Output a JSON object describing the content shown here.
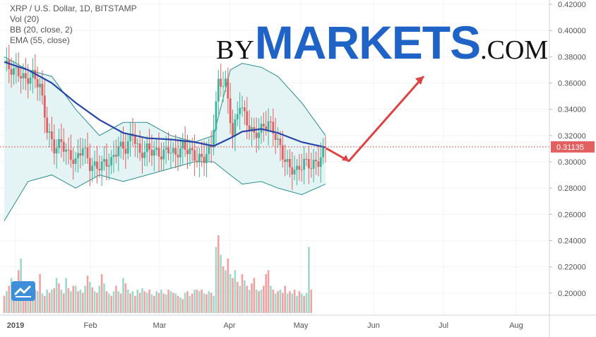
{
  "legend": {
    "title": "XRP / U.S. Dollar, 1D, BITSTAMP",
    "vol": "Vol (20)",
    "bb": "BB (20, close, 2)",
    "ema": "EMA (55, close)"
  },
  "watermark": {
    "by": "BY",
    "markets": "MARKETS",
    "com": ".COM"
  },
  "chart_data": {
    "type": "candlestick",
    "symbol": "XRP / U.S. Dollar",
    "interval": "1D",
    "exchange": "BITSTAMP",
    "y_range": [
      0.18,
      0.42
    ],
    "y_ticks": [
      "0.42000",
      "0.40000",
      "0.38000",
      "0.36000",
      "0.34000",
      "0.32000",
      "0.30000",
      "0.28000",
      "0.26000",
      "0.24000",
      "0.22000",
      "0.20000"
    ],
    "x_ticks": [
      "2019",
      "Feb",
      "Mar",
      "Apr",
      "May",
      "Jun",
      "Jul",
      "Aug"
    ],
    "current_price": "0.31135",
    "colors": {
      "up": "#3db59c",
      "down": "#e36060",
      "vol_up": "#9fd9cb",
      "vol_down": "#f2a2a2",
      "ema": "#2845a8",
      "bb": "#2a8f8f",
      "bb_fill": "#e4f3f4",
      "price_line": "#e36060",
      "arrow": "#de4343"
    },
    "price_path": [
      [
        0,
        0.375
      ],
      [
        3,
        0.37
      ],
      [
        6,
        0.368
      ],
      [
        9,
        0.362
      ],
      [
        12,
        0.366
      ],
      [
        15,
        0.358
      ],
      [
        18,
        0.325
      ],
      [
        21,
        0.31
      ],
      [
        24,
        0.315
      ],
      [
        27,
        0.305
      ],
      [
        30,
        0.3
      ],
      [
        33,
        0.312
      ],
      [
        36,
        0.297
      ],
      [
        39,
        0.296
      ],
      [
        42,
        0.299
      ],
      [
        45,
        0.3
      ],
      [
        48,
        0.312
      ],
      [
        51,
        0.31
      ],
      [
        54,
        0.322
      ],
      [
        57,
        0.305
      ],
      [
        60,
        0.31
      ],
      [
        63,
        0.308
      ],
      [
        66,
        0.305
      ],
      [
        69,
        0.31
      ],
      [
        72,
        0.305
      ],
      [
        75,
        0.312
      ],
      [
        78,
        0.308
      ],
      [
        81,
        0.302
      ],
      [
        84,
        0.303
      ],
      [
        87,
        0.312
      ],
      [
        90,
        0.36
      ],
      [
        93,
        0.36
      ],
      [
        96,
        0.32
      ],
      [
        99,
        0.345
      ],
      [
        102,
        0.33
      ],
      [
        105,
        0.32
      ],
      [
        108,
        0.325
      ],
      [
        111,
        0.33
      ],
      [
        114,
        0.32
      ],
      [
        117,
        0.305
      ],
      [
        120,
        0.295
      ],
      [
        123,
        0.293
      ],
      [
        126,
        0.3
      ],
      [
        129,
        0.297
      ],
      [
        132,
        0.3
      ],
      [
        135,
        0.31135
      ]
    ],
    "ema_path": [
      [
        0,
        0.376
      ],
      [
        10,
        0.37
      ],
      [
        20,
        0.36
      ],
      [
        30,
        0.345
      ],
      [
        40,
        0.332
      ],
      [
        50,
        0.322
      ],
      [
        60,
        0.318
      ],
      [
        70,
        0.317
      ],
      [
        80,
        0.315
      ],
      [
        88,
        0.312
      ],
      [
        95,
        0.318
      ],
      [
        100,
        0.323
      ],
      [
        108,
        0.325
      ],
      [
        115,
        0.322
      ],
      [
        125,
        0.315
      ],
      [
        135,
        0.311
      ]
    ],
    "bb_upper": [
      [
        0,
        0.38
      ],
      [
        10,
        0.37
      ],
      [
        20,
        0.365
      ],
      [
        30,
        0.34
      ],
      [
        40,
        0.32
      ],
      [
        50,
        0.33
      ],
      [
        60,
        0.33
      ],
      [
        70,
        0.32
      ],
      [
        80,
        0.315
      ],
      [
        88,
        0.32
      ],
      [
        95,
        0.37
      ],
      [
        100,
        0.375
      ],
      [
        108,
        0.372
      ],
      [
        115,
        0.365
      ],
      [
        125,
        0.345
      ],
      [
        135,
        0.32
      ]
    ],
    "bb_lower": [
      [
        0,
        0.255
      ],
      [
        10,
        0.285
      ],
      [
        20,
        0.29
      ],
      [
        30,
        0.28
      ],
      [
        40,
        0.29
      ],
      [
        50,
        0.285
      ],
      [
        60,
        0.29
      ],
      [
        70,
        0.295
      ],
      [
        80,
        0.3
      ],
      [
        88,
        0.3
      ],
      [
        95,
        0.29
      ],
      [
        100,
        0.283
      ],
      [
        108,
        0.285
      ],
      [
        115,
        0.28
      ],
      [
        125,
        0.275
      ],
      [
        135,
        0.283
      ]
    ],
    "volume_bars": [
      [
        0.22,
        0
      ],
      [
        0.28,
        1
      ],
      [
        0.35,
        0
      ],
      [
        0.45,
        1
      ],
      [
        0.3,
        0
      ],
      [
        0.25,
        1
      ],
      [
        0.55,
        0
      ],
      [
        0.7,
        1
      ],
      [
        0.4,
        0
      ],
      [
        0.3,
        0
      ],
      [
        0.25,
        1
      ],
      [
        0.2,
        0
      ],
      [
        0.35,
        1
      ],
      [
        0.3,
        0
      ],
      [
        0.28,
        1
      ],
      [
        0.5,
        0
      ],
      [
        0.25,
        1
      ],
      [
        0.22,
        0
      ],
      [
        0.3,
        1
      ],
      [
        0.26,
        0
      ],
      [
        0.3,
        1
      ],
      [
        0.32,
        0
      ],
      [
        0.45,
        1
      ],
      [
        0.38,
        0
      ],
      [
        0.3,
        1
      ],
      [
        0.25,
        0
      ],
      [
        0.45,
        1
      ],
      [
        0.32,
        0
      ],
      [
        0.28,
        1
      ],
      [
        0.35,
        0
      ],
      [
        0.35,
        1
      ],
      [
        0.28,
        0
      ],
      [
        0.3,
        1
      ],
      [
        0.26,
        0
      ],
      [
        0.35,
        1
      ],
      [
        0.48,
        0
      ],
      [
        0.4,
        1
      ],
      [
        0.33,
        0
      ],
      [
        0.28,
        1
      ],
      [
        0.26,
        0
      ],
      [
        0.35,
        1
      ],
      [
        0.5,
        0
      ],
      [
        0.38,
        1
      ],
      [
        0.28,
        0
      ],
      [
        0.25,
        1
      ],
      [
        0.22,
        0
      ],
      [
        0.28,
        1
      ],
      [
        0.35,
        0
      ],
      [
        0.28,
        1
      ],
      [
        0.25,
        0
      ],
      [
        0.45,
        1
      ],
      [
        0.38,
        0
      ],
      [
        0.3,
        1
      ],
      [
        0.25,
        0
      ],
      [
        0.28,
        1
      ],
      [
        0.22,
        0
      ],
      [
        0.3,
        1
      ],
      [
        0.26,
        0
      ],
      [
        0.32,
        1
      ],
      [
        0.28,
        0
      ],
      [
        0.26,
        1
      ],
      [
        0.3,
        0
      ],
      [
        0.24,
        1
      ],
      [
        0.22,
        0
      ],
      [
        0.28,
        1
      ],
      [
        0.26,
        0
      ],
      [
        0.3,
        1
      ],
      [
        0.25,
        0
      ],
      [
        0.24,
        1
      ],
      [
        0.3,
        0
      ],
      [
        0.28,
        1
      ],
      [
        0.26,
        0
      ],
      [
        0.25,
        1
      ],
      [
        0.22,
        0
      ],
      [
        0.2,
        1
      ],
      [
        0.18,
        0
      ],
      [
        0.26,
        1
      ],
      [
        0.28,
        0
      ],
      [
        0.22,
        1
      ],
      [
        0.25,
        0
      ],
      [
        0.3,
        1
      ],
      [
        0.3,
        0
      ],
      [
        0.28,
        1
      ],
      [
        0.3,
        0
      ],
      [
        0.25,
        1
      ],
      [
        0.24,
        0
      ],
      [
        0.28,
        1
      ],
      [
        0.26,
        0
      ],
      [
        0.22,
        1
      ],
      [
        0.85,
        1
      ],
      [
        1.0,
        0
      ],
      [
        0.75,
        1
      ],
      [
        0.6,
        0
      ],
      [
        0.55,
        1
      ],
      [
        0.7,
        0
      ],
      [
        0.5,
        1
      ],
      [
        0.45,
        0
      ],
      [
        0.55,
        1
      ],
      [
        0.4,
        0
      ],
      [
        0.35,
        1
      ],
      [
        0.5,
        0
      ],
      [
        0.42,
        1
      ],
      [
        0.35,
        0
      ],
      [
        0.3,
        1
      ],
      [
        0.38,
        0
      ],
      [
        0.45,
        0
      ],
      [
        0.3,
        1
      ],
      [
        0.28,
        0
      ],
      [
        0.3,
        1
      ],
      [
        0.35,
        0
      ],
      [
        0.5,
        0
      ],
      [
        0.55,
        0
      ],
      [
        0.35,
        1
      ],
      [
        0.3,
        0
      ],
      [
        0.25,
        1
      ],
      [
        0.28,
        0
      ],
      [
        0.3,
        1
      ],
      [
        0.26,
        0
      ],
      [
        0.35,
        0
      ],
      [
        0.25,
        1
      ],
      [
        0.28,
        0
      ],
      [
        0.25,
        1
      ],
      [
        0.3,
        0
      ],
      [
        0.22,
        1
      ],
      [
        0.28,
        0
      ],
      [
        0.25,
        1
      ],
      [
        0.22,
        0
      ],
      [
        0.26,
        1
      ],
      [
        0.85,
        1
      ],
      [
        0.3,
        0
      ]
    ]
  }
}
